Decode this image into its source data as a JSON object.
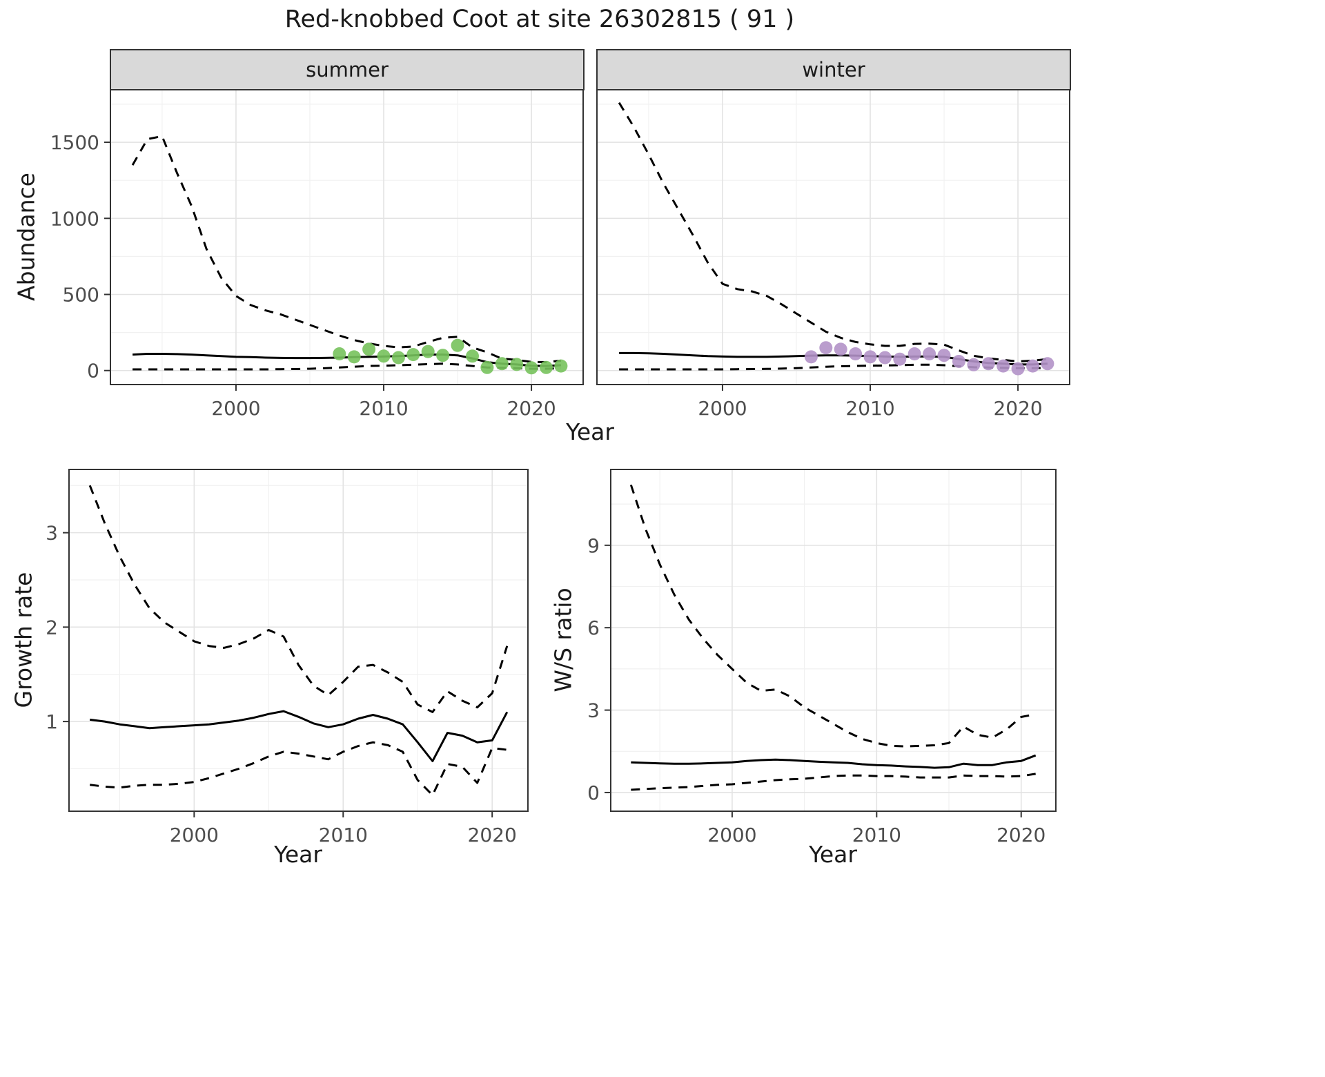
{
  "title": "Red-knobbed Coot at site 26302815 ( 91 )",
  "axis_titles": {
    "y_top": "Abundance",
    "x_top": "Year",
    "y_bottom_left": "Growth rate",
    "x_bottom_left": "Year",
    "y_bottom_right": "W/S ratio",
    "x_bottom_right": "Year"
  },
  "colors": {
    "summer_point": "#77c25c",
    "winter_point": "#b392c8",
    "line": "#000000",
    "grid_major": "#e3e3e3",
    "grid_minor": "#f1f1f1",
    "strip_bg": "#d9d9d9",
    "panel_border": "#333333",
    "axis_text": "#4d4d4d",
    "tick_mark": "#333333"
  },
  "chart_data": [
    {
      "id": "summer",
      "type": "line",
      "facet_label": "summer",
      "xlabel": "Year",
      "ylabel": "Abundance",
      "xlim": [
        1991.5,
        2023.5
      ],
      "ylim": [
        -92,
        1845
      ],
      "x_ticks": [
        2000,
        2010,
        2020
      ],
      "y_ticks": [
        0,
        500,
        1000,
        1500
      ],
      "x_minor": [
        1995,
        2005,
        2015
      ],
      "y_minor": [
        250,
        750,
        1250,
        1750
      ],
      "y_axis": true,
      "years": [
        1993,
        1994,
        1995,
        1996,
        1997,
        1998,
        1999,
        2000,
        2001,
        2002,
        2003,
        2004,
        2005,
        2006,
        2007,
        2008,
        2009,
        2010,
        2011,
        2012,
        2013,
        2014,
        2015,
        2016,
        2017,
        2018,
        2019,
        2020,
        2021,
        2022
      ],
      "series": [
        {
          "name": "upper-ci",
          "style": "dashed",
          "values": [
            1350,
            1520,
            1540,
            1300,
            1080,
            800,
            610,
            490,
            430,
            395,
            370,
            335,
            300,
            265,
            230,
            200,
            178,
            162,
            152,
            158,
            188,
            215,
            222,
            152,
            120,
            78,
            70,
            57,
            55,
            65
          ]
        },
        {
          "name": "median",
          "style": "solid",
          "values": [
            105,
            110,
            110,
            108,
            105,
            100,
            95,
            90,
            88,
            85,
            83,
            82,
            82,
            83,
            85,
            88,
            90,
            92,
            95,
            100,
            105,
            105,
            100,
            80,
            55,
            45,
            40,
            32,
            30,
            35
          ]
        },
        {
          "name": "lower-ci",
          "style": "dashed",
          "values": [
            8,
            8,
            8,
            8,
            8,
            8,
            8,
            8,
            8,
            8,
            9,
            10,
            12,
            15,
            20,
            25,
            30,
            32,
            35,
            38,
            42,
            45,
            40,
            30,
            20,
            18,
            15,
            12,
            12,
            15
          ]
        }
      ],
      "points": {
        "name": "summer-observed-point",
        "color_key": "summer_point",
        "years": [
          2007,
          2008,
          2009,
          2010,
          2011,
          2012,
          2013,
          2014,
          2015,
          2016,
          2017,
          2018,
          2019,
          2020,
          2021,
          2022
        ],
        "values": [
          110,
          90,
          140,
          95,
          85,
          105,
          125,
          100,
          165,
          95,
          20,
          45,
          40,
          18,
          20,
          30
        ]
      }
    },
    {
      "id": "winter",
      "type": "line",
      "facet_label": "winter",
      "xlabel": "Year",
      "ylabel": "Abundance",
      "xlim": [
        1991.5,
        2023.5
      ],
      "ylim": [
        -92,
        1845
      ],
      "x_ticks": [
        2000,
        2010,
        2020
      ],
      "y_ticks": [
        0,
        500,
        1000,
        1500
      ],
      "x_minor": [
        1995,
        2005,
        2015
      ],
      "y_minor": [
        250,
        750,
        1250,
        1750
      ],
      "y_axis": false,
      "years": [
        1993,
        1994,
        1995,
        1996,
        1997,
        1998,
        1999,
        2000,
        2001,
        2002,
        2003,
        2004,
        2005,
        2006,
        2007,
        2008,
        2009,
        2010,
        2011,
        2012,
        2013,
        2014,
        2015,
        2016,
        2017,
        2018,
        2019,
        2020,
        2021,
        2022
      ],
      "series": [
        {
          "name": "upper-ci",
          "style": "dashed",
          "values": [
            1760,
            1600,
            1420,
            1230,
            1060,
            890,
            710,
            570,
            535,
            520,
            490,
            435,
            375,
            315,
            255,
            215,
            188,
            172,
            162,
            162,
            175,
            177,
            170,
            132,
            97,
            80,
            70,
            60,
            65,
            75
          ]
        },
        {
          "name": "median",
          "style": "solid",
          "values": [
            115,
            115,
            113,
            110,
            105,
            100,
            95,
            92,
            90,
            90,
            90,
            92,
            95,
            98,
            100,
            100,
            98,
            95,
            92,
            90,
            92,
            92,
            90,
            75,
            60,
            50,
            45,
            40,
            40,
            45
          ]
        },
        {
          "name": "lower-ci",
          "style": "dashed",
          "values": [
            8,
            8,
            8,
            8,
            8,
            8,
            8,
            8,
            9,
            10,
            11,
            13,
            16,
            20,
            25,
            28,
            30,
            32,
            33,
            35,
            38,
            38,
            35,
            28,
            22,
            20,
            18,
            15,
            15,
            18
          ]
        }
      ],
      "points": {
        "name": "winter-observed-point",
        "color_key": "winter_point",
        "years": [
          2006,
          2007,
          2008,
          2009,
          2010,
          2011,
          2012,
          2013,
          2014,
          2015,
          2016,
          2017,
          2018,
          2019,
          2020,
          2021,
          2022
        ],
        "values": [
          90,
          150,
          140,
          110,
          90,
          85,
          75,
          110,
          110,
          100,
          60,
          38,
          45,
          30,
          12,
          30,
          45
        ]
      }
    },
    {
      "id": "growth",
      "type": "line",
      "facet_label": "",
      "xlabel": "Year",
      "ylabel": "Growth rate",
      "xlim": [
        1991.6,
        2022.4
      ],
      "ylim": [
        0.05,
        3.67
      ],
      "x_ticks": [
        2000,
        2010,
        2020
      ],
      "y_ticks": [
        1,
        2,
        3
      ],
      "x_minor": [
        1995,
        2005,
        2015
      ],
      "y_minor": [
        0.5,
        1.5,
        2.5,
        3.5
      ],
      "y_axis": true,
      "years": [
        1993,
        1994,
        1995,
        1996,
        1997,
        1998,
        1999,
        2000,
        2001,
        2002,
        2003,
        2004,
        2005,
        2006,
        2007,
        2008,
        2009,
        2010,
        2011,
        2012,
        2013,
        2014,
        2015,
        2016,
        2017,
        2018,
        2019,
        2020,
        2021
      ],
      "series": [
        {
          "name": "upper-ci",
          "style": "dashed",
          "values": [
            3.5,
            3.1,
            2.75,
            2.45,
            2.2,
            2.05,
            1.95,
            1.85,
            1.8,
            1.78,
            1.82,
            1.88,
            1.97,
            1.9,
            1.6,
            1.38,
            1.28,
            1.42,
            1.58,
            1.6,
            1.52,
            1.42,
            1.18,
            1.1,
            1.32,
            1.22,
            1.15,
            1.3,
            1.8
          ]
        },
        {
          "name": "median",
          "style": "solid",
          "values": [
            1.02,
            1.0,
            0.97,
            0.95,
            0.93,
            0.94,
            0.95,
            0.96,
            0.97,
            0.99,
            1.01,
            1.04,
            1.08,
            1.11,
            1.05,
            0.98,
            0.94,
            0.97,
            1.03,
            1.07,
            1.03,
            0.97,
            0.78,
            0.58,
            0.88,
            0.85,
            0.78,
            0.8,
            1.1
          ]
        },
        {
          "name": "lower-ci",
          "style": "dashed",
          "values": [
            0.33,
            0.31,
            0.3,
            0.32,
            0.33,
            0.33,
            0.34,
            0.36,
            0.4,
            0.45,
            0.5,
            0.56,
            0.63,
            0.68,
            0.66,
            0.63,
            0.6,
            0.68,
            0.74,
            0.78,
            0.75,
            0.68,
            0.38,
            0.22,
            0.55,
            0.52,
            0.35,
            0.72,
            0.7
          ]
        }
      ],
      "points": null
    },
    {
      "id": "ws",
      "type": "line",
      "facet_label": "",
      "xlabel": "Year",
      "ylabel": "W/S ratio",
      "xlim": [
        1991.6,
        2022.4
      ],
      "ylim": [
        -0.68,
        11.76
      ],
      "x_ticks": [
        2000,
        2010,
        2020
      ],
      "y_ticks": [
        0,
        3,
        6,
        9
      ],
      "x_minor": [
        1995,
        2005,
        2015
      ],
      "y_minor": [
        1.5,
        4.5,
        7.5,
        10.5
      ],
      "y_axis": true,
      "years": [
        1993,
        1994,
        1995,
        1996,
        1997,
        1998,
        1999,
        2000,
        2001,
        2002,
        2003,
        2004,
        2005,
        2006,
        2007,
        2008,
        2009,
        2010,
        2011,
        2012,
        2013,
        2014,
        2015,
        2016,
        2017,
        2018,
        2019,
        2020,
        2021
      ],
      "series": [
        {
          "name": "upper-ci",
          "style": "dashed",
          "values": [
            11.2,
            9.6,
            8.3,
            7.2,
            6.3,
            5.6,
            5.0,
            4.5,
            4.0,
            3.7,
            3.75,
            3.5,
            3.1,
            2.8,
            2.5,
            2.2,
            1.95,
            1.8,
            1.7,
            1.68,
            1.7,
            1.72,
            1.8,
            2.4,
            2.1,
            2.0,
            2.3,
            2.75,
            2.85
          ]
        },
        {
          "name": "median",
          "style": "solid",
          "values": [
            1.1,
            1.08,
            1.06,
            1.05,
            1.05,
            1.06,
            1.08,
            1.1,
            1.15,
            1.18,
            1.2,
            1.18,
            1.15,
            1.12,
            1.1,
            1.08,
            1.03,
            1.0,
            0.98,
            0.95,
            0.93,
            0.9,
            0.92,
            1.05,
            1.0,
            1.0,
            1.1,
            1.15,
            1.35
          ]
        },
        {
          "name": "lower-ci",
          "style": "dashed",
          "values": [
            0.1,
            0.13,
            0.16,
            0.18,
            0.2,
            0.24,
            0.28,
            0.3,
            0.35,
            0.4,
            0.45,
            0.48,
            0.5,
            0.55,
            0.6,
            0.62,
            0.62,
            0.6,
            0.6,
            0.58,
            0.55,
            0.55,
            0.55,
            0.62,
            0.6,
            0.6,
            0.58,
            0.6,
            0.68
          ]
        }
      ],
      "points": null
    }
  ]
}
